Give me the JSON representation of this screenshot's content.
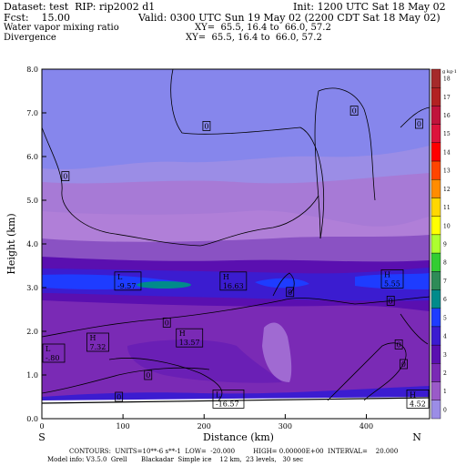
{
  "header": {
    "line1_left": "Dataset: test  RIP: rip2002 d1",
    "line1_right": "Init: 1200 UTC Sat 18 May 02",
    "line2_left": "Fcst:    15.00",
    "line2_right": "Valid: 0300 UTC Sun 19 May 02 (2200 CDT Sat 18 May 02)",
    "line3_left": "Water vapor mixing ratio",
    "line3_right": "XY=  65.5, 16.4 to  66.0, 57.2",
    "line4_left": "Divergence",
    "line4_right": "XY=  65.5, 16.4 to  66.0, 57.2"
  },
  "footer": {
    "line1": "CONTOURS:  UNITS=10**-6 s**-1  LOW=  -20.000         HIGH= 0.00000E+00  INTERVAL=    20.000",
    "line2": "Model info: V3.5.0  Grell       Blackadar  Simple ice    12 km,  23 levels,   30 sec"
  },
  "colorbar": {
    "unit_label": "g kg-1",
    "levels": [
      "18",
      "17",
      "16",
      "15",
      "14",
      "13",
      "12",
      "11",
      "10",
      "9",
      "8",
      "7",
      "6",
      "5",
      "4",
      "3",
      "2",
      "1",
      "0"
    ],
    "colors": [
      "#a52a2a",
      "#b22222",
      "#c0143c",
      "#dc143c",
      "#ff0000",
      "#ff4500",
      "#ff8c00",
      "#ffd700",
      "#ffff00",
      "#adff2f",
      "#32cd32",
      "#2e8b57",
      "#008b8b",
      "#1e3cff",
      "#3b1cd0",
      "#5a0fb0",
      "#7a2ab5",
      "#9a5ac8",
      "#9b8de6"
    ]
  },
  "chart_data": {
    "type": "heatmap",
    "xlabel": "Distance (km)",
    "ylabel": "Height (km)",
    "xlim": [
      0,
      478
    ],
    "ylim": [
      0,
      8
    ],
    "x_ticks": [
      "0",
      "100",
      "200",
      "300",
      "400"
    ],
    "x_tick_values": [
      0,
      100,
      200,
      300,
      400
    ],
    "y_ticks": [
      "0.0",
      "1.0",
      "2.0",
      "3.0",
      "4.0",
      "5.0",
      "6.0",
      "7.0",
      "8.0"
    ],
    "y_tick_values": [
      0,
      1,
      2,
      3,
      4,
      5,
      6,
      7,
      8
    ],
    "endpoint_left": "S",
    "endpoint_right": "N",
    "contour_labels": [
      {
        "text": "0",
        "x": 29,
        "y": 5.55
      },
      {
        "text": "0",
        "x": 203,
        "y": 6.7
      },
      {
        "text": "0",
        "x": 385,
        "y": 7.05
      },
      {
        "text": "0",
        "x": 465,
        "y": 6.75
      },
      {
        "text": "0",
        "x": 306,
        "y": 2.9
      },
      {
        "text": "0",
        "x": 430,
        "y": 2.7
      },
      {
        "text": "0",
        "x": 154,
        "y": 2.2
      },
      {
        "text": "0",
        "x": 440,
        "y": 1.7
      },
      {
        "text": "0",
        "x": 446,
        "y": 1.25
      },
      {
        "text": "0",
        "x": 131,
        "y": 1.0
      },
      {
        "text": "0",
        "x": 95,
        "y": 0.5
      }
    ],
    "extrema": [
      {
        "kind": "L",
        "value": "-9.57",
        "x": 106,
        "y": 3.15
      },
      {
        "kind": "H",
        "value": "16.63",
        "x": 236,
        "y": 3.15
      },
      {
        "kind": "H",
        "value": "5.55",
        "x": 432,
        "y": 3.2
      },
      {
        "kind": "H",
        "value": "7.32",
        "x": 69,
        "y": 1.75
      },
      {
        "kind": "H",
        "value": "13.57",
        "x": 182,
        "y": 1.85
      },
      {
        "kind": "L",
        "value": "-.80",
        "x": 5,
        "y": 1.5
      },
      {
        "kind": "L",
        "value": "-16.57",
        "x": 230,
        "y": 0.45
      },
      {
        "kind": "H",
        "value": "4.52",
        "x": 476,
        "y": 0.45
      }
    ]
  }
}
